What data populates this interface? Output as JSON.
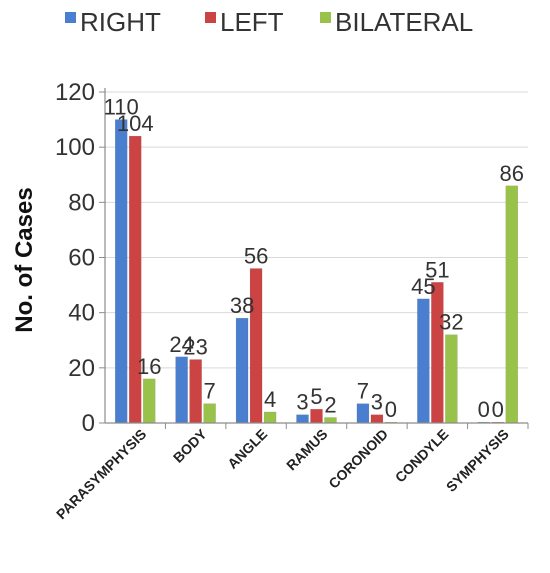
{
  "chart_data": {
    "type": "bar",
    "title": "",
    "xlabel": "",
    "ylabel": "No. of Cases",
    "ylim": [
      0,
      120
    ],
    "yticks": [
      0,
      20,
      40,
      60,
      80,
      100,
      120
    ],
    "grid": true,
    "legend_position": "top",
    "categories": [
      "PARASYMPHYSIS",
      "BODY",
      "ANGLE",
      "RAMUS",
      "CORONOID",
      "CONDYLE",
      "SYMPHYSIS"
    ],
    "series": [
      {
        "name": "RIGHT",
        "color": "#4A7FD0",
        "values": [
          110,
          24,
          38,
          3,
          7,
          45,
          0
        ]
      },
      {
        "name": "LEFT",
        "color": "#CC4343",
        "values": [
          104,
          23,
          56,
          5,
          3,
          51,
          0
        ]
      },
      {
        "name": "BILATERAL",
        "color": "#99C24A",
        "values": [
          16,
          7,
          4,
          2,
          0,
          32,
          86
        ]
      }
    ]
  }
}
